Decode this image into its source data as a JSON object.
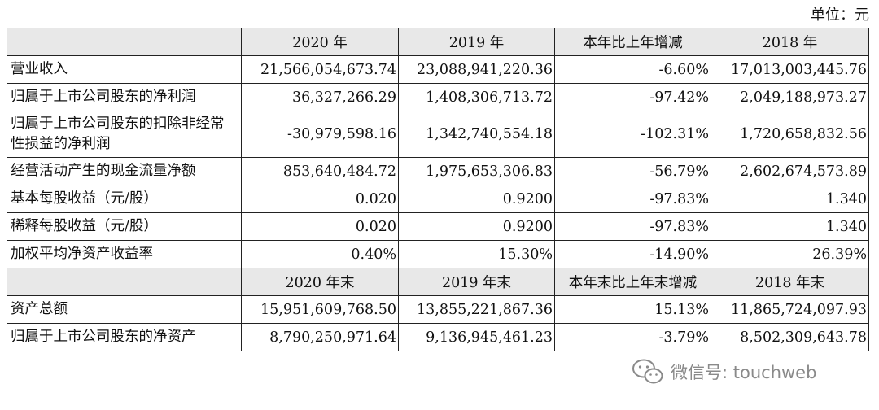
{
  "unit": "单位：元",
  "header1": [
    "",
    "2020 年",
    "2019 年",
    "本年比上年增减",
    "2018 年"
  ],
  "rows1": [
    [
      "营业收入",
      "21,566,054,673.74",
      "23,088,941,220.36",
      "-6.60%",
      "17,013,003,445.76"
    ],
    [
      "归属于上市公司股东的净利润",
      "36,327,266.29",
      "1,408,306,713.72",
      "-97.42%",
      "2,049,188,973.27"
    ],
    [
      "归属于上市公司股东的扣除非经常性损益的净利润",
      "-30,979,598.16",
      "1,342,740,554.18",
      "-102.31%",
      "1,720,658,832.56"
    ],
    [
      "经营活动产生的现金流量净额",
      "853,640,484.72",
      "1,975,653,306.83",
      "-56.79%",
      "2,602,674,573.89"
    ],
    [
      "基本每股收益（元/股）",
      "0.020",
      "0.9200",
      "-97.83%",
      "1.340"
    ],
    [
      "稀释每股收益（元/股）",
      "0.020",
      "0.9200",
      "-97.83%",
      "1.340"
    ],
    [
      "加权平均净资产收益率",
      "0.40%",
      "15.30%",
      "-14.90%",
      "26.39%"
    ]
  ],
  "header2": [
    "",
    "2020 年末",
    "2019 年末",
    "本年末比上年末增减",
    "2018 年末"
  ],
  "rows2": [
    [
      "资产总额",
      "15,951,609,768.50",
      "13,855,221,867.36",
      "15.13%",
      "11,865,724,097.93"
    ],
    [
      "归属于上市公司股东的净资产",
      "8,790,250,971.64",
      "9,136,945,461.23",
      "-3.79%",
      "8,502,309,643.78"
    ]
  ],
  "watermark": {
    "icon": "wechat-icon",
    "text": "微信号: touchweb"
  }
}
